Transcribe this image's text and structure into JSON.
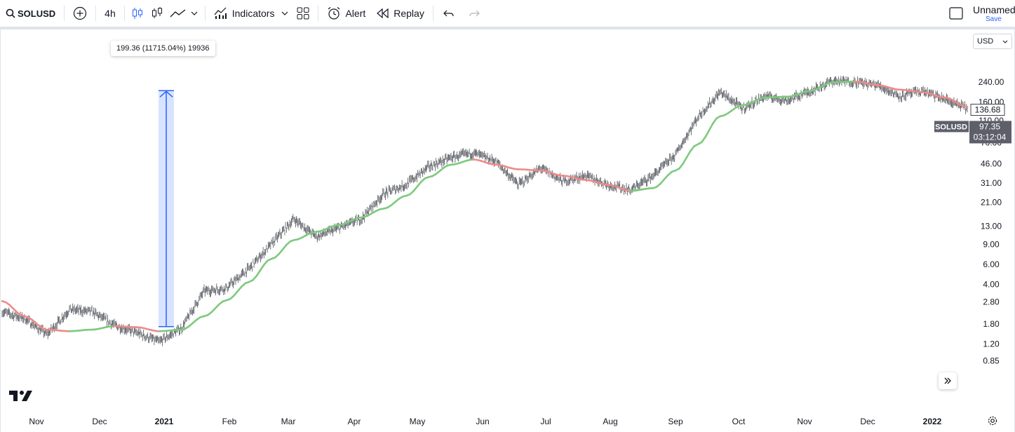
{
  "toolbar": {
    "symbol": "SOLUSD",
    "interval": "4h",
    "indicators_label": "Indicators",
    "alert_label": "Alert",
    "replay_label": "Replay",
    "layout_name": "Unnamed",
    "save_label": "Save"
  },
  "chart": {
    "currency": "USD",
    "measure_tooltip": "199.36 (11715.04%) 19936",
    "symbol_badge": "SOLUSD",
    "last_price": "97.35",
    "countdown": "03:12:04",
    "ma_price": "136.68",
    "colors": {
      "ma_up": "#7ec97e",
      "ma_down": "#ef8a8a",
      "measure": "#2962ff",
      "candles": "#131722"
    }
  },
  "chart_data": {
    "type": "line",
    "scale": "log",
    "series": [
      {
        "values": [
          2.3,
          2.0,
          1.45,
          2.4,
          2.3,
          1.75,
          1.5,
          1.25,
          1.65,
          3.5,
          3.7,
          5.5,
          9,
          15,
          10.5,
          12.5,
          15,
          25,
          30,
          43,
          52,
          57,
          48,
          30,
          42,
          32,
          36,
          30,
          27,
          36,
          55,
          118,
          195,
          140,
          180,
          165,
          200,
          245,
          240,
          225,
          180,
          200,
          168,
          140
        ]
      },
      {
        "values": [
          2.85,
          2.1,
          1.6,
          1.55,
          1.6,
          1.72,
          1.68,
          1.55,
          1.6,
          2.1,
          2.9,
          4.2,
          6.7,
          9.8,
          11.6,
          13.3,
          15.5,
          18.5,
          24,
          35,
          45,
          50,
          45,
          41,
          40,
          36,
          33,
          30,
          26.5,
          28,
          40,
          68,
          120,
          150,
          175,
          178,
          200,
          238,
          242,
          225,
          205,
          195,
          175,
          145
        ]
      }
    ],
    "x_ticks": [
      "Nov",
      "Dec",
      "2021",
      "Feb",
      "Mar",
      "Apr",
      "May",
      "Jun",
      "Jul",
      "Aug",
      "Sep",
      "Oct",
      "Nov",
      "Dec",
      "2022"
    ],
    "y_ticks": [
      "240.00",
      "160.00",
      "110.00",
      "70.00",
      "46.00",
      "31.00",
      "21.00",
      "13.00",
      "9.00",
      "6.00",
      "4.00",
      "2.80",
      "1.80",
      "1.20",
      "0.85"
    ],
    "measure": {
      "from": 1.7,
      "to": 201.06
    }
  }
}
